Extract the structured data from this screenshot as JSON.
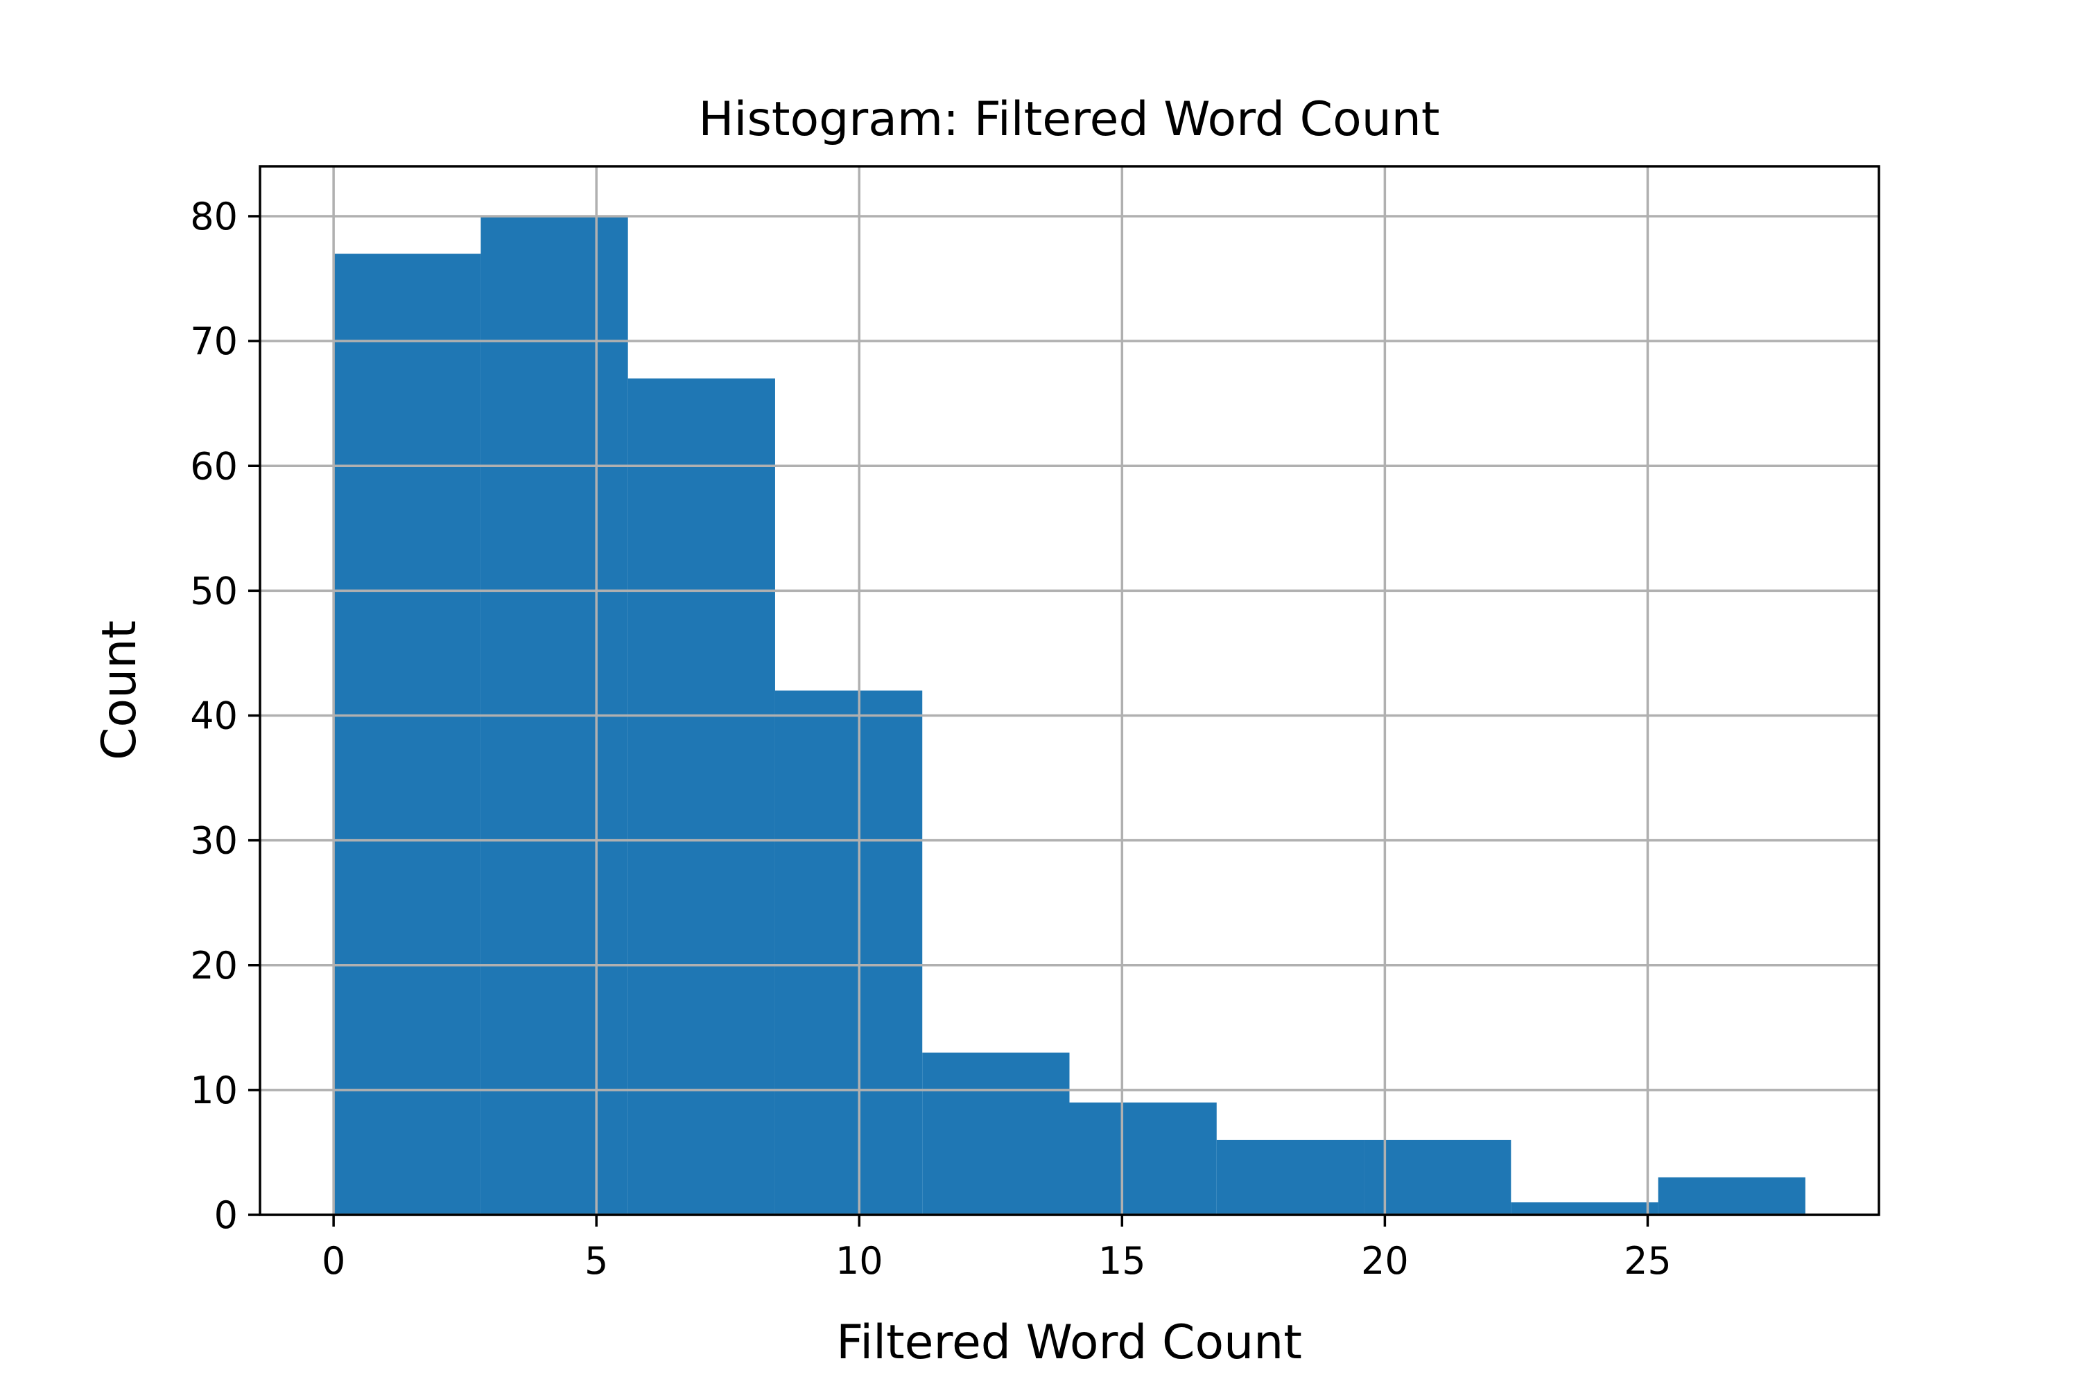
{
  "chart_data": {
    "type": "bar",
    "title": "Histogram: Filtered Word Count",
    "xlabel": "Filtered Word Count",
    "ylabel": "Count",
    "bin_edges": [
      0,
      2.8,
      5.6,
      8.4,
      11.2,
      14.0,
      16.8,
      19.6,
      22.4,
      25.2,
      28.0
    ],
    "values": [
      77,
      80,
      67,
      42,
      13,
      9,
      6,
      6,
      1,
      3
    ],
    "xlim": [
      -1.4,
      29.4
    ],
    "ylim": [
      0,
      84
    ],
    "xticks": [
      0,
      5,
      10,
      15,
      20,
      25
    ],
    "yticks": [
      0,
      10,
      20,
      30,
      40,
      50,
      60,
      70,
      80
    ],
    "grid": true,
    "bar_color": "#1f77b4",
    "grid_color": "#b0b0b0"
  }
}
